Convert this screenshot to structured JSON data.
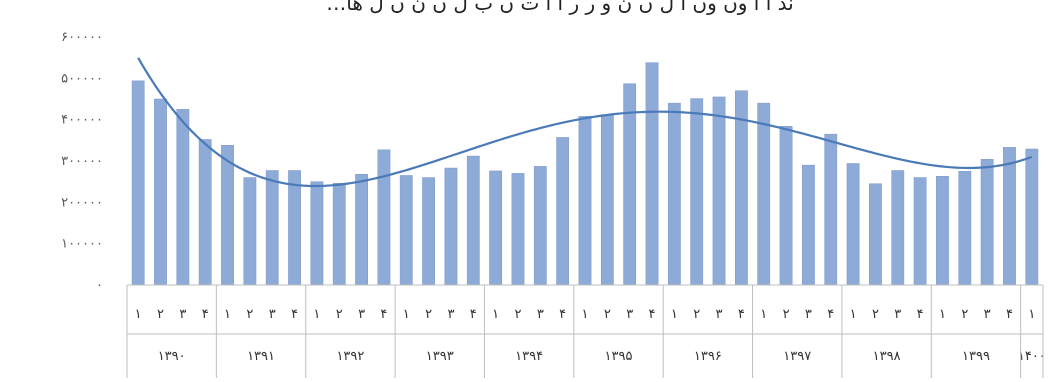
{
  "chart_data": {
    "type": "bar",
    "title": "…ند ا ا وں وں ا ل ں ن و ر ر ا ا ت ں ب ل ں ن ں ل ها",
    "y_ticks": [
      "۰",
      "۱۰۰۰۰۰",
      "۲۰۰۰۰۰",
      "۳۰۰۰۰۰",
      "۴۰۰۰۰۰",
      "۵۰۰۰۰۰",
      "۶۰۰۰۰۰"
    ],
    "ylim": [
      0,
      600000
    ],
    "categories": [
      "۱",
      "۲",
      "۳",
      "۴",
      "۱",
      "۲",
      "۳",
      "۴",
      "۱",
      "۲",
      "۳",
      "۴",
      "۱",
      "۲",
      "۳",
      "۴",
      "۱",
      "۲",
      "۳",
      "۴",
      "۱",
      "۲",
      "۳",
      "۴",
      "۱",
      "۲",
      "۳",
      "۴",
      "۱",
      "۲",
      "۳",
      "۴",
      "۱",
      "۲",
      "۳",
      "۴",
      "۱",
      "۲",
      "۳",
      "۴",
      "۱"
    ],
    "years": [
      {
        "label": "۱۳۹۰",
        "span": 4
      },
      {
        "label": "۱۳۹۱",
        "span": 4
      },
      {
        "label": "۱۳۹۲",
        "span": 4
      },
      {
        "label": "۱۳۹۳",
        "span": 4
      },
      {
        "label": "۱۳۹۴",
        "span": 4
      },
      {
        "label": "۱۳۹۵",
        "span": 4
      },
      {
        "label": "۱۳۹۶",
        "span": 4
      },
      {
        "label": "۱۳۹۷",
        "span": 4
      },
      {
        "label": "۱۳۹۸",
        "span": 4
      },
      {
        "label": "۱۳۹۹",
        "span": 4
      },
      {
        "label": "۱۴۰۰",
        "span": 1
      }
    ],
    "values": [
      494000,
      450000,
      425000,
      352000,
      338000,
      260000,
      277000,
      277000,
      250000,
      246000,
      268000,
      327000,
      265000,
      260000,
      283000,
      312000,
      276000,
      270000,
      287000,
      357000,
      408000,
      412000,
      487000,
      538000,
      440000,
      451000,
      455000,
      470000,
      440000,
      384000,
      290000,
      365000,
      294000,
      245000,
      277000,
      260000,
      263000,
      275000,
      304000,
      333000,
      329000
    ],
    "trendline": "polynomial",
    "colors": {
      "bar": "#8EAAD6",
      "bar_stroke": "#7A99CB",
      "trend": "#4A7AB8",
      "axis": "#BFBFBF"
    },
    "grid": false
  }
}
